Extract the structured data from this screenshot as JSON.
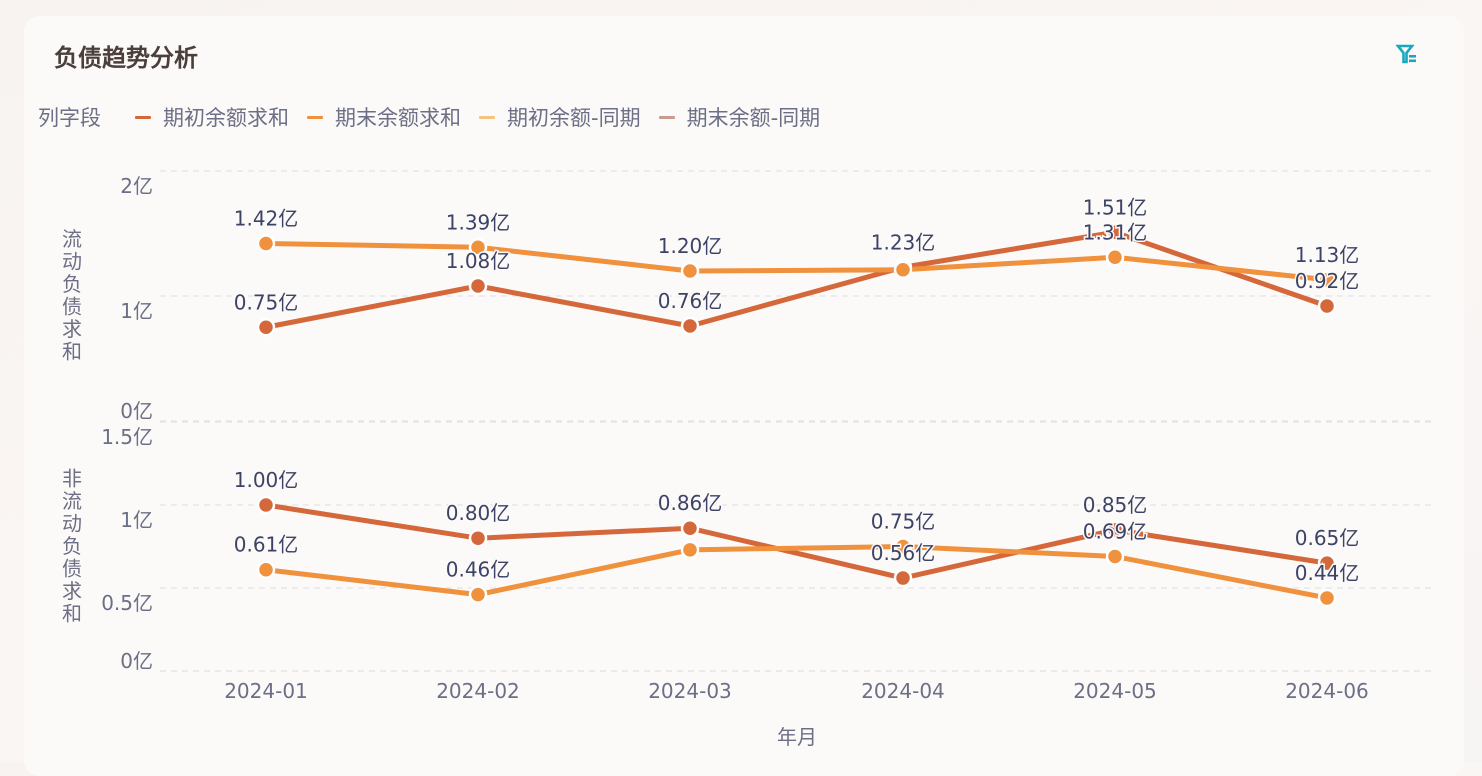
{
  "header": {
    "title": "负债趋势分析",
    "filter_icon": "filter-list-icon"
  },
  "legend": {
    "title": "列字段",
    "items": [
      {
        "label": "期初余额求和",
        "color": "#d4683a"
      },
      {
        "label": "期末余额求和",
        "color": "#ef913d"
      },
      {
        "label": "期初余额-同期",
        "color": "#f6c27f"
      },
      {
        "label": "期末余额-同期",
        "color": "#c99a8e"
      }
    ]
  },
  "chart_data": {
    "type": "line",
    "title": "负债趋势分析",
    "xlabel": "年月",
    "categories": [
      "2024-01",
      "2024-02",
      "2024-03",
      "2024-04",
      "2024-05",
      "2024-06"
    ],
    "legend_title": "列字段",
    "legend_position": "top",
    "grid": true,
    "panels": [
      {
        "ylabel": "流动负债求和",
        "yticks": [
          "0亿",
          "1亿",
          "2亿"
        ],
        "ylim": [
          0,
          2
        ],
        "unit": "亿",
        "series": [
          {
            "name": "期初余额求和",
            "color": "#d4683a",
            "values": [
              0.75,
              1.08,
              0.76,
              1.23,
              1.51,
              0.92
            ],
            "labels": [
              "0.75亿",
              "1.08亿",
              "0.76亿",
              "1.23亿",
              "1.51亿",
              "0.92亿"
            ]
          },
          {
            "name": "期末余额求和",
            "color": "#ef913d",
            "values": [
              1.42,
              1.39,
              1.2,
              1.21,
              1.31,
              1.13
            ],
            "labels": [
              "1.42亿",
              "1.39亿",
              "1.20亿",
              "",
              "1.31亿",
              "1.13亿"
            ]
          }
        ]
      },
      {
        "ylabel": "非流动负债求和",
        "yticks": [
          "0亿",
          "0.5亿",
          "1亿",
          "1.5亿"
        ],
        "ylim": [
          0,
          1.5
        ],
        "unit": "亿",
        "series": [
          {
            "name": "期初余额求和",
            "color": "#d4683a",
            "values": [
              1.0,
              0.8,
              0.86,
              0.56,
              0.85,
              0.65
            ],
            "labels": [
              "1.00亿",
              "0.80亿",
              "0.86亿",
              "0.56亿",
              "0.85亿",
              "0.65亿"
            ]
          },
          {
            "name": "期末余额求和",
            "color": "#ef913d",
            "values": [
              0.61,
              0.46,
              0.73,
              0.75,
              0.69,
              0.44
            ],
            "labels": [
              "0.61亿",
              "0.46亿",
              "",
              "0.75亿",
              "0.69亿",
              "0.44亿"
            ]
          }
        ]
      }
    ]
  }
}
